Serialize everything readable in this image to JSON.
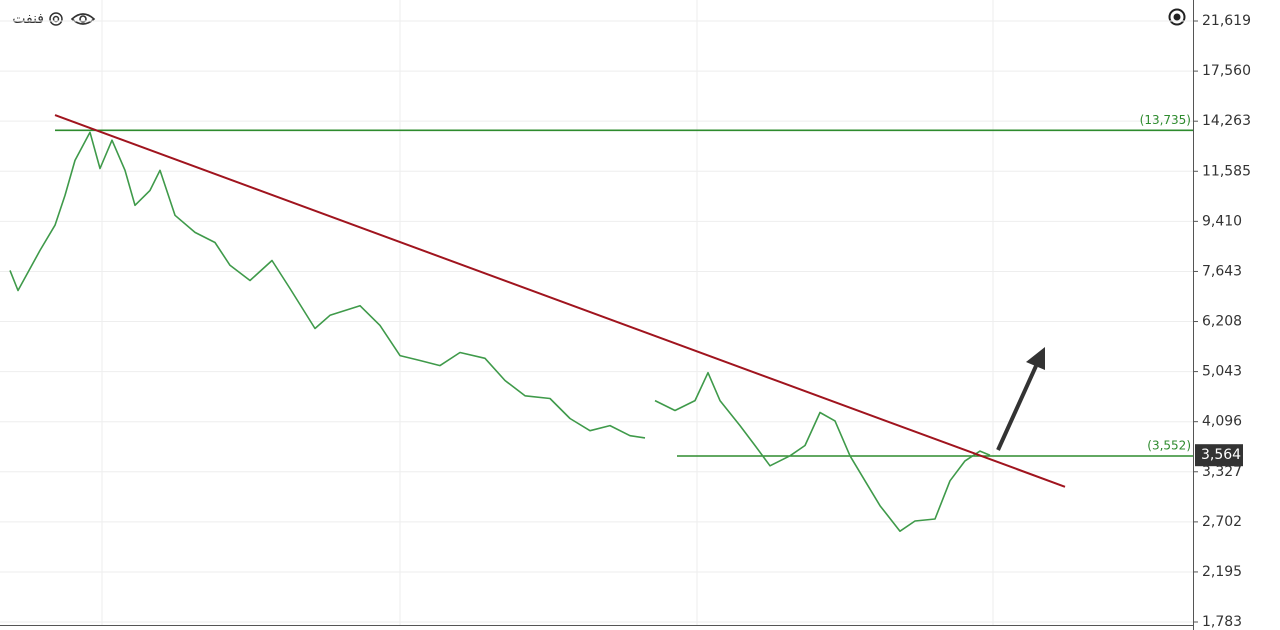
{
  "chart_data": {
    "type": "line",
    "title": "فنفت",
    "log_scale": true,
    "grid": true,
    "xlim": [
      0,
      1193
    ],
    "ylim": [
      1761,
      23590
    ],
    "yticks": [
      {
        "value": 21619,
        "label": "21,619"
      },
      {
        "value": 17560,
        "label": "17,560"
      },
      {
        "value": 14263,
        "label": "14,263"
      },
      {
        "value": 11585,
        "label": "11,585"
      },
      {
        "value": 9410,
        "label": "9,410"
      },
      {
        "value": 7643,
        "label": "7,643"
      },
      {
        "value": 6208,
        "label": "6,208"
      },
      {
        "value": 5043,
        "label": "5,043"
      },
      {
        "value": 4096,
        "label": "4,096"
      },
      {
        "value": 3327,
        "label": "3,327"
      },
      {
        "value": 2702,
        "label": "2,702"
      },
      {
        "value": 2195,
        "label": "2,195"
      },
      {
        "value": 1783,
        "label": "1,783"
      }
    ],
    "x": [
      10,
      18,
      40,
      55,
      65,
      75,
      90,
      100,
      112,
      125,
      135,
      150,
      160,
      175,
      195,
      215,
      230,
      250,
      272,
      290,
      315,
      330,
      360,
      380,
      400,
      420,
      440,
      460,
      485,
      505,
      525,
      550,
      570,
      590,
      610,
      630,
      645,
      650,
      655,
      675,
      695,
      708,
      720,
      740,
      755,
      770,
      790,
      805,
      820,
      835,
      850,
      865,
      880,
      900,
      915,
      935,
      950,
      965,
      980,
      990
    ],
    "series": [
      {
        "color": "#3f9a4a",
        "values": [
          7675,
          7062,
          8340,
          9260,
          10480,
          12120,
          13620,
          11720,
          13180,
          11630,
          10060,
          10700,
          11630,
          9650,
          8990,
          8620,
          7840,
          7360,
          8000,
          7120,
          6030,
          6370,
          6630,
          6110,
          5390,
          5280,
          5170,
          5460,
          5330,
          4860,
          4560,
          4510,
          4150,
          3945,
          4030,
          3865,
          3830,
          null,
          4470,
          4290,
          4470,
          5020,
          4470,
          4030,
          3710,
          3410,
          3555,
          3710,
          4255,
          4110,
          3555,
          3205,
          2890,
          2600,
          2712,
          2735,
          3205,
          3480,
          3625,
          3564
        ]
      }
    ],
    "trendline": {
      "color": "#a0141e",
      "x": [
        55,
        1065
      ],
      "values": [
        14628,
        3126
      ]
    },
    "levels": [
      {
        "value": 13735,
        "label": "(13,735)",
        "x": [
          55,
          1193
        ],
        "color": "#2e8b2e"
      },
      {
        "value": 3552,
        "label": "(3,552)",
        "x": [
          677,
          1193
        ],
        "color": "#2e8b2e"
      }
    ],
    "last_price": {
      "value": 3564,
      "label": "3,564"
    }
  }
}
